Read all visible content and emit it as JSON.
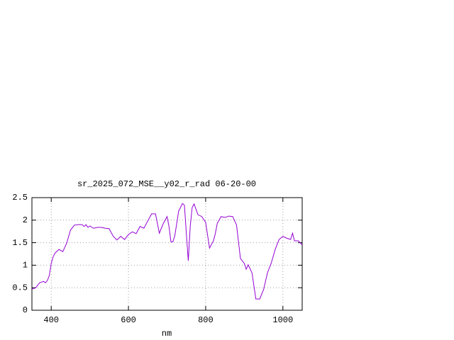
{
  "chart_data": {
    "type": "line",
    "title": "sr_2025_072_MSE__y02_r_rad 06-20-00",
    "xlabel": "nm",
    "x": [
      350,
      360,
      370,
      380,
      385,
      390,
      395,
      400,
      405,
      410,
      420,
      430,
      440,
      450,
      460,
      470,
      480,
      485,
      490,
      495,
      500,
      510,
      520,
      530,
      540,
      550,
      560,
      570,
      580,
      590,
      600,
      610,
      620,
      630,
      640,
      650,
      660,
      670,
      680,
      690,
      700,
      705,
      710,
      715,
      720,
      730,
      740,
      745,
      750,
      755,
      760,
      765,
      770,
      780,
      790,
      800,
      810,
      820,
      825,
      830,
      840,
      850,
      860,
      870,
      880,
      890,
      900,
      905,
      910,
      920,
      930,
      940,
      950,
      960,
      970,
      980,
      990,
      1000,
      1010,
      1020,
      1025,
      1030,
      1040,
      1050
    ],
    "series": [
      {
        "color": "#9400d3",
        "values": [
          0.47,
          0.5,
          0.61,
          0.64,
          0.61,
          0.66,
          0.77,
          1.04,
          1.19,
          1.27,
          1.35,
          1.3,
          1.49,
          1.78,
          1.89,
          1.9,
          1.9,
          1.86,
          1.9,
          1.84,
          1.87,
          1.82,
          1.84,
          1.84,
          1.82,
          1.81,
          1.65,
          1.56,
          1.64,
          1.57,
          1.68,
          1.74,
          1.7,
          1.86,
          1.82,
          1.98,
          2.14,
          2.14,
          1.71,
          1.92,
          2.08,
          1.86,
          1.52,
          1.52,
          1.65,
          2.2,
          2.37,
          2.33,
          1.7,
          1.1,
          1.86,
          2.28,
          2.36,
          2.12,
          2.08,
          1.95,
          1.38,
          1.54,
          1.7,
          1.93,
          2.08,
          2.06,
          2.09,
          2.08,
          1.89,
          1.15,
          1.04,
          0.91,
          1.01,
          0.83,
          0.25,
          0.25,
          0.46,
          0.83,
          1.05,
          1.35,
          1.57,
          1.64,
          1.6,
          1.57,
          1.71,
          1.54,
          1.54,
          1.45
        ]
      }
    ],
    "xlim": [
      350,
      1050
    ],
    "xticks": [
      400,
      600,
      800,
      1000
    ],
    "ylim": [
      0,
      2.5
    ],
    "yticks": [
      0,
      0.5,
      1,
      1.5,
      2,
      2.5
    ],
    "grid": true
  }
}
